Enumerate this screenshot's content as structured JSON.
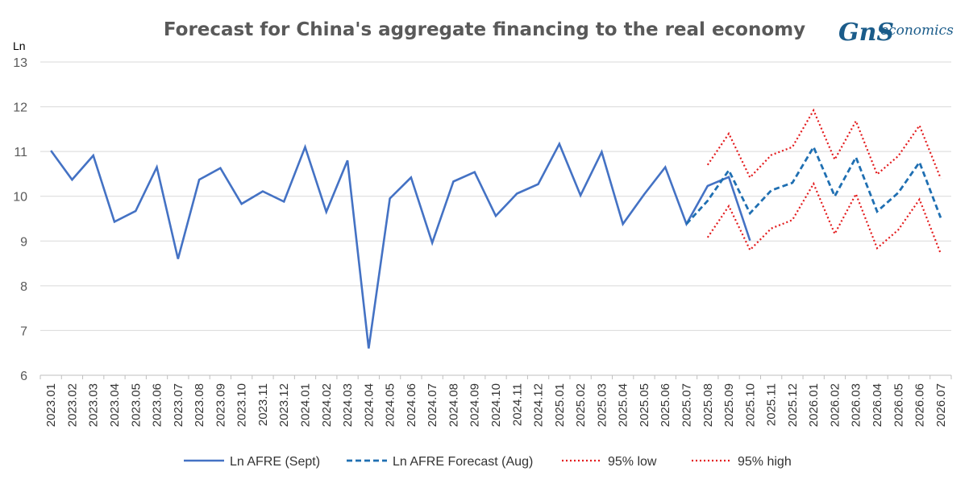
{
  "chart_data": {
    "type": "line",
    "title": "Forecast for China's aggregate financing to the real economy",
    "ylabel": "Ln",
    "xlabel": "",
    "ylim": [
      6,
      13
    ],
    "yticks": [
      "6",
      "7",
      "8",
      "9",
      "10",
      "11",
      "12",
      "13"
    ],
    "grid": "horizontal",
    "legend_position": "bottom",
    "categories": [
      "2023.01",
      "2023.02",
      "2023.03",
      "2023.04",
      "2023.05",
      "2023.06",
      "2023.07",
      "2023.08",
      "2023.09",
      "2023.10",
      "2023.11",
      "2023.12",
      "2024.01",
      "2024.02",
      "2024.03",
      "2024.04",
      "2024.05",
      "2024.06",
      "2024.07",
      "2024.08",
      "2024.09",
      "2024.10",
      "2024.11",
      "2024.12",
      "2025.01",
      "2025.02",
      "2025.03",
      "2025.04",
      "2025.05",
      "2025.06",
      "2025.07",
      "2025.08",
      "2025.09",
      "2025.10",
      "2025.11",
      "2025.12",
      "2026.01",
      "2026.02",
      "2026.03",
      "2026.04",
      "2026.05",
      "2026.06",
      "2026.07"
    ],
    "series": [
      {
        "name": "Ln AFRE (Sept)",
        "style": "solid",
        "color": "#4472c4",
        "values": [
          11.02,
          10.37,
          10.91,
          9.43,
          9.67,
          10.65,
          8.6,
          10.37,
          10.63,
          9.83,
          10.11,
          9.88,
          11.1,
          9.65,
          10.8,
          6.6,
          9.95,
          10.42,
          8.96,
          10.33,
          10.54,
          9.56,
          10.06,
          10.27,
          11.17,
          10.02,
          10.99,
          9.38,
          10.04,
          10.65,
          9.38,
          10.23,
          10.43,
          9.01,
          null,
          null,
          null,
          null,
          null,
          null,
          null,
          null,
          null
        ]
      },
      {
        "name": "Ln AFRE Forecast (Aug)",
        "style": "dashed",
        "color": "#1f6fb2",
        "values": [
          null,
          null,
          null,
          null,
          null,
          null,
          null,
          null,
          null,
          null,
          null,
          null,
          null,
          null,
          null,
          null,
          null,
          null,
          null,
          null,
          null,
          null,
          null,
          null,
          null,
          null,
          null,
          null,
          null,
          null,
          9.38,
          9.9,
          10.58,
          9.62,
          10.13,
          10.3,
          11.1,
          10.0,
          10.87,
          9.66,
          10.08,
          10.76,
          9.52
        ]
      },
      {
        "name": "95% low",
        "style": "dotted",
        "color": "#e31a1c",
        "values": [
          null,
          null,
          null,
          null,
          null,
          null,
          null,
          null,
          null,
          null,
          null,
          null,
          null,
          null,
          null,
          null,
          null,
          null,
          null,
          null,
          null,
          null,
          null,
          null,
          null,
          null,
          null,
          null,
          null,
          null,
          null,
          9.08,
          9.78,
          8.8,
          9.28,
          9.47,
          10.28,
          9.16,
          10.05,
          8.84,
          9.25,
          9.93,
          8.72
        ]
      },
      {
        "name": "95% high",
        "style": "dotted",
        "color": "#e31a1c",
        "values": [
          null,
          null,
          null,
          null,
          null,
          null,
          null,
          null,
          null,
          null,
          null,
          null,
          null,
          null,
          null,
          null,
          null,
          null,
          null,
          null,
          null,
          null,
          null,
          null,
          null,
          null,
          null,
          null,
          null,
          null,
          null,
          10.7,
          11.4,
          10.42,
          10.92,
          11.1,
          11.92,
          10.82,
          11.68,
          10.49,
          10.9,
          11.58,
          10.4
        ]
      }
    ]
  },
  "logo": {
    "mark": "GnS",
    "text": "economics",
    "color": "#1b5c8a"
  }
}
